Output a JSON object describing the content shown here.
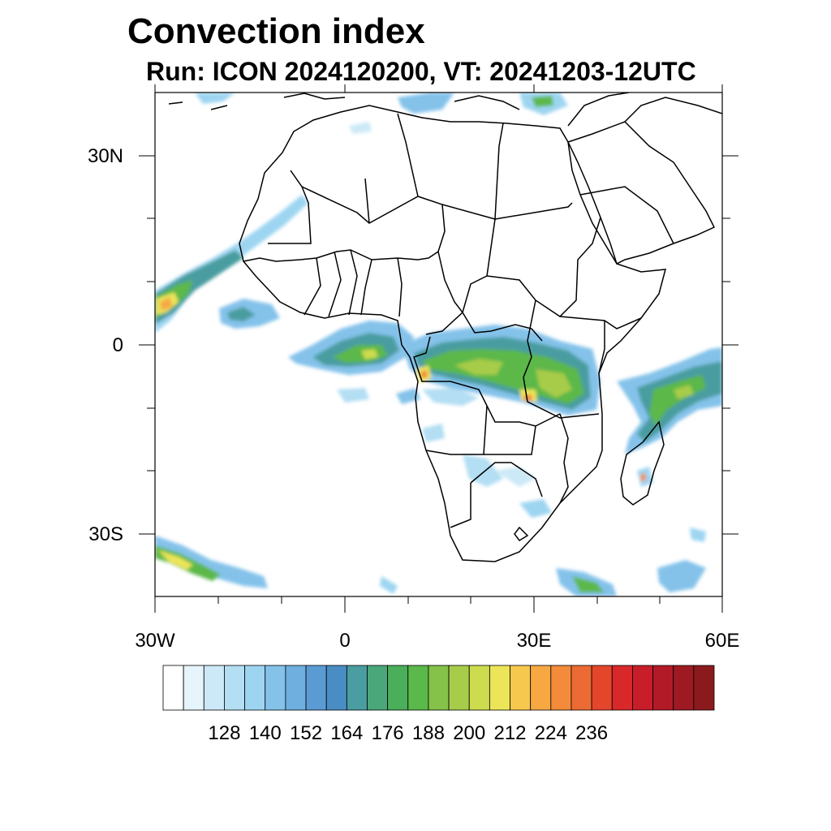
{
  "title": "Convection index",
  "subtitle": "Run: ICON 2024120200,  VT: 20241203-12UTC",
  "map": {
    "lon_range": [
      -30,
      60
    ],
    "lat_range": [
      -40,
      40
    ],
    "lon_ticks": [
      {
        "value": -30,
        "label": "30W"
      },
      {
        "value": 0,
        "label": "0"
      },
      {
        "value": 30,
        "label": "30E"
      },
      {
        "value": 60,
        "label": "60E"
      }
    ],
    "lat_ticks": [
      {
        "value": 30,
        "label": "30N"
      },
      {
        "value": 0,
        "label": "0"
      },
      {
        "value": -30,
        "label": "30S"
      }
    ],
    "convection_regions": [
      {
        "name": "west-africa-atlantic-band",
        "intensity": 176
      },
      {
        "name": "gulf-of-guinea-band",
        "intensity": 176
      },
      {
        "name": "central-africa-core",
        "intensity": 200
      },
      {
        "name": "east-africa-tanzania",
        "intensity": 200
      },
      {
        "name": "madagascar-indian-ocean",
        "intensity": 176
      },
      {
        "name": "south-atlantic",
        "intensity": 176
      }
    ]
  },
  "colorbar": {
    "colors": [
      "#ffffff",
      "#e6f4fb",
      "#cce9f7",
      "#b3def3",
      "#9dd5f1",
      "#84c2ea",
      "#6fafe0",
      "#5a9bd4",
      "#4a8dc5",
      "#4a9da0",
      "#49a77a",
      "#4aae5a",
      "#5bb84a",
      "#84c24a",
      "#a7cc4a",
      "#cddc4e",
      "#ece55a",
      "#f6c94e",
      "#f7a842",
      "#f38b3a",
      "#ec6a33",
      "#e4462c",
      "#d9282a",
      "#c81e2a",
      "#b31a28",
      "#9e1a22",
      "#8a1a1c"
    ],
    "labels": [
      "128",
      "140",
      "152",
      "164",
      "176",
      "188",
      "200",
      "212",
      "224",
      "236"
    ]
  }
}
